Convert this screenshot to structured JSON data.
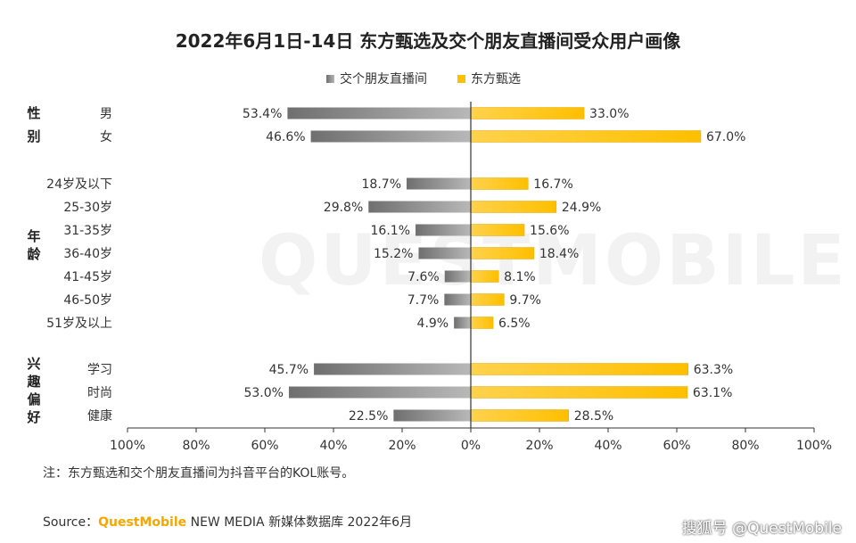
{
  "title": "2022年6月1日-14日 东方甄选及交个朋友直播间受众用户画像",
  "legend": {
    "left": "交个朋友直播间",
    "right": "东方甄选"
  },
  "colors": {
    "left_bar": "#8c8c8c",
    "right_bar": "#ffc000",
    "axis": "#333333",
    "watermark": "#dcdcdc"
  },
  "watermark": "QUESTMOBILE",
  "note": "注：东方甄选和交个朋友直播间为抖音平台的KOL账号。",
  "source": {
    "prefix": "Source：",
    "brand": "QuestMobile",
    "rest": " NEW MEDIA 新媒体数据库 2022年6月"
  },
  "corner_watermark": "搜狐号 @QuestMobile",
  "chart_data": {
    "type": "bar",
    "orientation": "horizontal-butterfly",
    "groups": [
      {
        "label": "性别",
        "categories": [
          "男",
          "女"
        ]
      },
      {
        "label": "年龄",
        "categories": [
          "24岁及以下",
          "25-30岁",
          "31-35岁",
          "36-40岁",
          "41-45岁",
          "46-50岁",
          "51岁及以上"
        ]
      },
      {
        "label": "兴趣偏好",
        "categories": [
          "学习",
          "时尚",
          "健康"
        ]
      }
    ],
    "series": [
      {
        "name": "交个朋友直播间",
        "direction": "left",
        "values": [
          53.4,
          46.6,
          18.7,
          29.8,
          16.1,
          15.2,
          7.6,
          7.7,
          4.9,
          45.7,
          53.0,
          22.5
        ],
        "labels": [
          "53.4%",
          "46.6%",
          "18.7%",
          "29.8%",
          "16.1%",
          "15.2%",
          "7.6%",
          "7.7%",
          "4.9%",
          "45.7%",
          "53.0%",
          "22.5%"
        ]
      },
      {
        "name": "东方甄选",
        "direction": "right",
        "values": [
          33.0,
          67.0,
          16.7,
          24.9,
          15.6,
          18.4,
          8.1,
          9.7,
          6.5,
          63.3,
          63.1,
          28.5
        ],
        "labels": [
          "33.0%",
          "67.0%",
          "16.7%",
          "24.9%",
          "15.6%",
          "18.4%",
          "8.1%",
          "9.7%",
          "6.5%",
          "63.3%",
          "63.1%",
          "28.5%"
        ]
      }
    ],
    "xlim": [
      -100,
      100
    ],
    "x_ticks": [
      "100%",
      "80%",
      "60%",
      "40%",
      "20%",
      "0%",
      "20%",
      "40%",
      "60%",
      "80%",
      "100%"
    ],
    "grid": false
  }
}
